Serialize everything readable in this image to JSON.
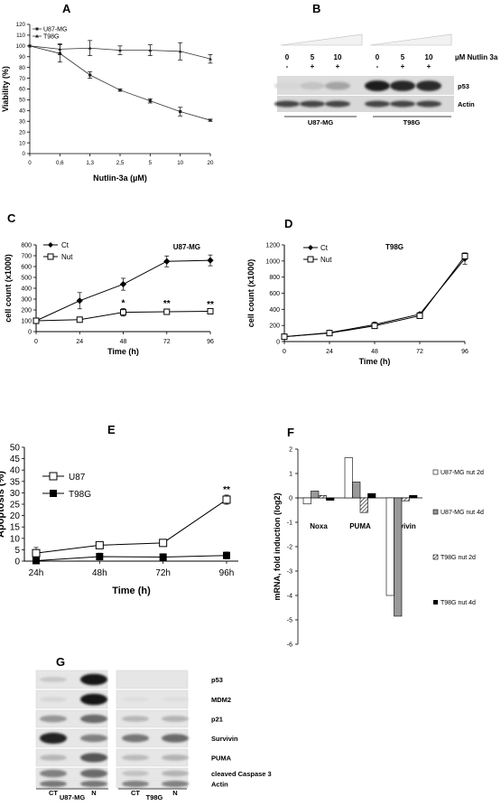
{
  "chart_data": [
    {
      "id": "A",
      "type": "line",
      "panel_label": "A",
      "xlabel": "Nutlin-3a (µM)",
      "ylabel": "Viability (%)",
      "categories": [
        "0",
        "0,6",
        "1,3",
        "2,5",
        "5",
        "10",
        "20"
      ],
      "ylim": [
        0,
        120
      ],
      "yticks": [
        0,
        10,
        20,
        30,
        40,
        50,
        60,
        70,
        80,
        90,
        100,
        110,
        120
      ],
      "legend_position": "top-left",
      "series": [
        {
          "name": "U87-MG",
          "marker": "square",
          "values": [
            100,
            93,
            73,
            59,
            49,
            39,
            31
          ],
          "err": [
            0,
            8,
            3,
            1,
            2,
            4,
            1
          ]
        },
        {
          "name": "T98G",
          "marker": "triangle",
          "values": [
            100,
            97,
            98,
            96,
            96,
            95,
            88
          ],
          "err": [
            0,
            5,
            7,
            4,
            5,
            8,
            4
          ]
        }
      ]
    },
    {
      "id": "C",
      "type": "line",
      "panel_label": "C",
      "title": "U87-MG",
      "xlabel": "Time (h)",
      "ylabel": "cell count (x1000)",
      "x": [
        0,
        24,
        48,
        72,
        96
      ],
      "xlim": [
        0,
        96
      ],
      "ylim": [
        0,
        800
      ],
      "yticks": [
        0,
        100,
        200,
        300,
        400,
        500,
        600,
        700,
        800
      ],
      "legend_position": "top-left",
      "series": [
        {
          "name": "Ct",
          "marker": "diamond",
          "values": [
            100,
            285,
            437,
            648,
            657
          ],
          "err": [
            10,
            75,
            55,
            50,
            50
          ]
        },
        {
          "name": "Nut",
          "marker": "square-open",
          "values": [
            100,
            110,
            178,
            183,
            188
          ],
          "err": [
            10,
            15,
            35,
            25,
            10
          ]
        }
      ],
      "annotations": [
        {
          "x": 48,
          "text": "*"
        },
        {
          "x": 72,
          "text": "**"
        },
        {
          "x": 96,
          "text": "**"
        }
      ]
    },
    {
      "id": "D",
      "type": "line",
      "panel_label": "D",
      "title": "T98G",
      "xlabel": "Time (h)",
      "ylabel": "cell count (x1000)",
      "x": [
        0,
        24,
        48,
        72,
        96
      ],
      "xlim": [
        0,
        96
      ],
      "ylim": [
        0,
        1200
      ],
      "yticks": [
        0,
        200,
        400,
        600,
        800,
        1000,
        1200
      ],
      "legend_position": "top-left",
      "series": [
        {
          "name": "Ct",
          "marker": "diamond",
          "values": [
            60,
            110,
            210,
            340,
            1030
          ],
          "err": [
            10,
            15,
            30,
            20,
            70
          ]
        },
        {
          "name": "Nut",
          "marker": "square-open",
          "values": [
            60,
            105,
            195,
            320,
            1060
          ],
          "err": [
            10,
            15,
            30,
            20,
            40
          ]
        }
      ]
    },
    {
      "id": "E",
      "type": "line",
      "panel_label": "E",
      "xlabel": "Time (h)",
      "ylabel": "Apoptosis (%)",
      "categories": [
        "24h",
        "48h",
        "72h",
        "96h"
      ],
      "ylim": [
        0,
        50
      ],
      "yticks": [
        0,
        5,
        10,
        15,
        20,
        25,
        30,
        35,
        40,
        45,
        50
      ],
      "legend_position": "top-left",
      "series": [
        {
          "name": "U87",
          "marker": "square-open",
          "values": [
            3.5,
            7,
            8,
            27
          ],
          "err": [
            2.5,
            1,
            0.5,
            2
          ]
        },
        {
          "name": "T98G",
          "marker": "square-filled",
          "values": [
            0.2,
            2,
            1.8,
            2.5
          ],
          "err": [
            0.5,
            1.5,
            0.5,
            1.5
          ]
        }
      ],
      "annotations": [
        {
          "x": "96h",
          "text": "**"
        }
      ]
    },
    {
      "id": "F",
      "type": "bar",
      "panel_label": "F",
      "ylabel": "mRNA, fold induction (log2)",
      "categories": [
        "Noxa",
        "PUMA",
        "Survivin"
      ],
      "ylim": [
        -6,
        2
      ],
      "yticks": [
        -6,
        -5,
        -4,
        -3,
        -2,
        -1,
        0,
        1,
        2
      ],
      "legend_position": "right",
      "series": [
        {
          "name": "U87-MG nut 2d",
          "fill": "white",
          "values": [
            -0.25,
            1.65,
            -4.0
          ]
        },
        {
          "name": "U87-MG nut 4d",
          "fill": "gray",
          "values": [
            0.28,
            0.65,
            -4.85
          ]
        },
        {
          "name": "T98G nut 2d",
          "fill": "hatched",
          "values": [
            0.1,
            -0.6,
            -0.12
          ]
        },
        {
          "name": "T98G nut 4d",
          "fill": "black",
          "values": [
            -0.1,
            0.18,
            0.1
          ]
        }
      ]
    }
  ],
  "panels": {
    "A": {
      "label": "A",
      "legend": [
        "U87-MG",
        "T98G"
      ]
    },
    "B": {
      "label": "B",
      "header_unit": "µM Nutlin 3a",
      "doses": [
        "0",
        "5",
        "10",
        "0",
        "5",
        "10"
      ],
      "signs": [
        "-",
        "+",
        "+",
        "-",
        "+",
        "+"
      ],
      "blots": [
        "p53",
        "Actin"
      ],
      "cell_lines": [
        "U87-MG",
        "T98G"
      ],
      "p53_intensity": [
        0.03,
        0.12,
        0.28,
        0.95,
        0.9,
        0.88
      ]
    },
    "C": {
      "label": "C",
      "title": "U87-MG",
      "legend": [
        "Ct",
        "Nut"
      ]
    },
    "D": {
      "label": "D",
      "title": "T98G",
      "legend": [
        "Ct",
        "Nut"
      ]
    },
    "E": {
      "label": "E",
      "legend": [
        "U87",
        "T98G"
      ]
    },
    "F": {
      "label": "F",
      "legend": [
        "U87-MG nut 2d",
        "U87-MG nut 4d",
        "T98G nut 2d",
        "T98G nut 4d"
      ]
    },
    "G": {
      "label": "G",
      "rows": [
        "p53",
        "MDM2",
        "p21",
        "Survivin",
        "PUMA",
        "cleaved Caspase 3",
        "Actin"
      ],
      "lanes": [
        "CT",
        "N",
        "CT",
        "N"
      ],
      "cell_lines": [
        "U87-MG",
        "T98G"
      ],
      "intensity": [
        [
          0.12,
          0.95,
          0.0,
          0.0
        ],
        [
          0.05,
          0.95,
          0.02,
          0.02
        ],
        [
          0.35,
          0.55,
          0.2,
          0.22
        ],
        [
          0.9,
          0.45,
          0.5,
          0.55
        ],
        [
          0.2,
          0.65,
          0.18,
          0.22
        ],
        [
          0.45,
          0.55,
          0.15,
          0.22
        ],
        [
          0.5,
          0.5,
          0.45,
          0.45
        ]
      ]
    }
  }
}
